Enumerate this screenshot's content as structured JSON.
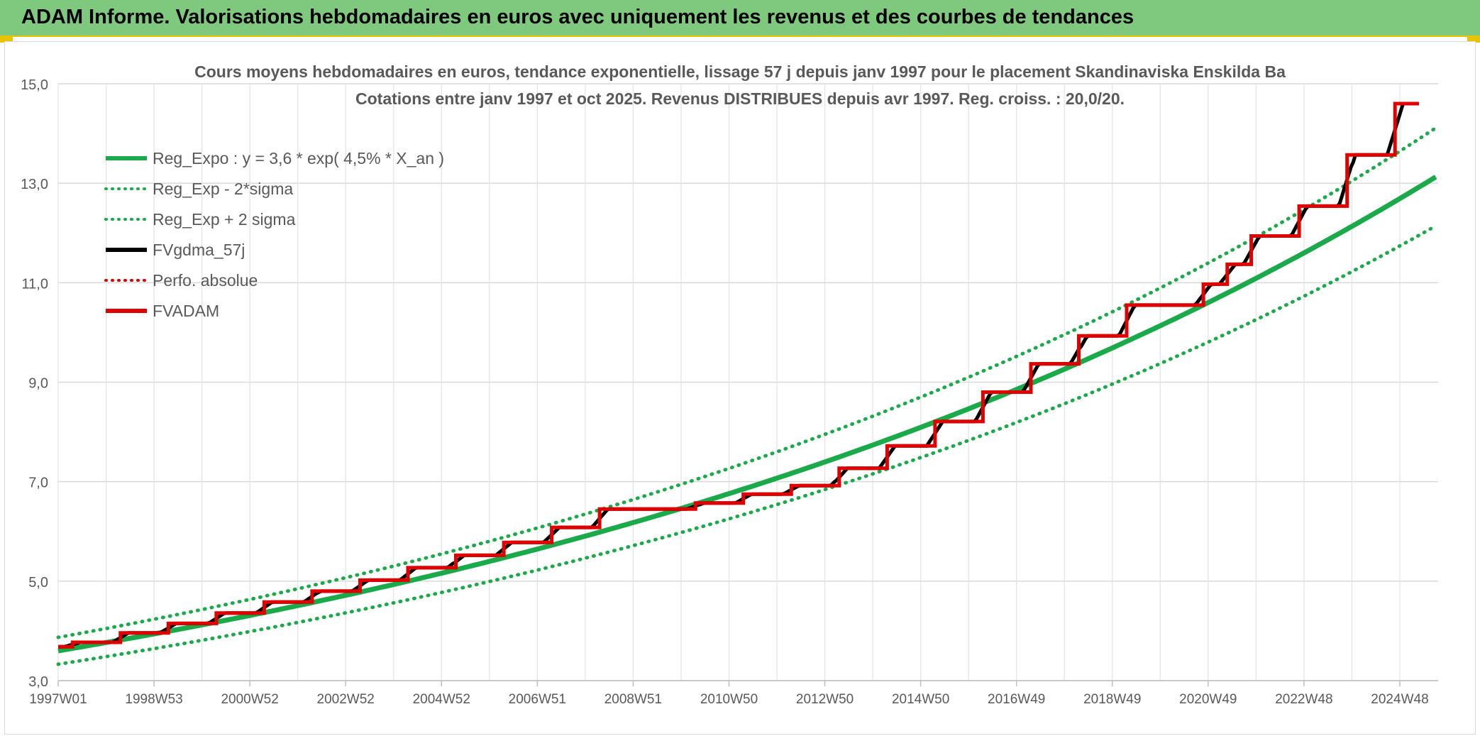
{
  "header": {
    "title": "ADAM Informe. Valorisations hebdomadaires en euros avec uniquement les revenus et des courbes de tendances"
  },
  "chart_data": {
    "type": "line",
    "title": "Cours moyens hebdomadaires en euros, tendance exponentielle, lissage 57 j depuis janv 1997 pour le placement Skandinaviska Enskilda Ba",
    "subtitle": "Cotations entre janv 1997 et oct 2025. Revenus DISTRIBUES depuis avr 1997. Reg. croiss. : 20,0/20.",
    "xlabel": "",
    "ylabel": "",
    "x_range": [
      1997.0,
      2025.8
    ],
    "ylim": [
      3.0,
      15.0
    ],
    "y_ticks": [
      "3,0",
      "5,0",
      "7,0",
      "9,0",
      "11,0",
      "13,0",
      "15,0"
    ],
    "x_ticks": [
      {
        "label": "1997W01",
        "x": 1997.0
      },
      {
        "label": "1998W53",
        "x": 1999.0
      },
      {
        "label": "2000W52",
        "x": 2001.0
      },
      {
        "label": "2002W52",
        "x": 2003.0
      },
      {
        "label": "2004W52",
        "x": 2005.0
      },
      {
        "label": "2006W51",
        "x": 2007.0
      },
      {
        "label": "2008W51",
        "x": 2009.0
      },
      {
        "label": "2010W50",
        "x": 2011.0
      },
      {
        "label": "2012W50",
        "x": 2013.0
      },
      {
        "label": "2014W50",
        "x": 2015.0
      },
      {
        "label": "2016W49",
        "x": 2017.0
      },
      {
        "label": "2018W49",
        "x": 2019.0
      },
      {
        "label": "2020W49",
        "x": 2021.0
      },
      {
        "label": "2022W48",
        "x": 2023.0
      },
      {
        "label": "2024W48",
        "x": 2025.0
      }
    ],
    "grid": true,
    "legend_position": "top-left",
    "series": [
      {
        "name": "Reg_Expo : y = 3,6 * exp( 4,5% *  X_an )",
        "kind": "exp",
        "a": 3.6,
        "rate": 0.045,
        "factor": 1.0,
        "color": "#1aaa4a",
        "style": "solid"
      },
      {
        "name": "Reg_Exp - 2*sigma",
        "kind": "exp",
        "a": 3.6,
        "rate": 0.045,
        "factor": 0.925,
        "color": "#1aaa4a",
        "style": "dotted"
      },
      {
        "name": "Reg_Exp + 2 sigma",
        "kind": "exp",
        "a": 3.6,
        "rate": 0.045,
        "factor": 1.075,
        "color": "#1aaa4a",
        "style": "dotted"
      },
      {
        "name": "FVgdma_57j",
        "kind": "smooth",
        "color": "#000000",
        "style": "solid"
      },
      {
        "name": "Perfo. absolue",
        "kind": "none",
        "color": "#e00000",
        "style": "dotted"
      },
      {
        "name": "FVADAM",
        "kind": "step",
        "color": "#e00000",
        "style": "solid",
        "steps": [
          {
            "x": 1997.0,
            "y": 3.68
          },
          {
            "x": 1997.3,
            "y": 3.77
          },
          {
            "x": 1998.3,
            "y": 3.96
          },
          {
            "x": 1999.3,
            "y": 4.15
          },
          {
            "x": 2000.3,
            "y": 4.36
          },
          {
            "x": 2001.3,
            "y": 4.58
          },
          {
            "x": 2002.3,
            "y": 4.8
          },
          {
            "x": 2003.3,
            "y": 5.02
          },
          {
            "x": 2004.3,
            "y": 5.27
          },
          {
            "x": 2005.3,
            "y": 5.52
          },
          {
            "x": 2006.3,
            "y": 5.78
          },
          {
            "x": 2007.3,
            "y": 6.08
          },
          {
            "x": 2008.3,
            "y": 6.45
          },
          {
            "x": 2010.3,
            "y": 6.57
          },
          {
            "x": 2011.3,
            "y": 6.75
          },
          {
            "x": 2012.3,
            "y": 6.92
          },
          {
            "x": 2013.3,
            "y": 7.27
          },
          {
            "x": 2014.3,
            "y": 7.72
          },
          {
            "x": 2015.3,
            "y": 8.21
          },
          {
            "x": 2016.3,
            "y": 8.8
          },
          {
            "x": 2017.3,
            "y": 9.37
          },
          {
            "x": 2018.3,
            "y": 9.93
          },
          {
            "x": 2019.3,
            "y": 10.55
          },
          {
            "x": 2020.9,
            "y": 10.97
          },
          {
            "x": 2021.4,
            "y": 11.37
          },
          {
            "x": 2021.9,
            "y": 11.94
          },
          {
            "x": 2022.9,
            "y": 12.54
          },
          {
            "x": 2023.9,
            "y": 13.57
          },
          {
            "x": 2024.9,
            "y": 14.6
          },
          {
            "x": 2025.4,
            "y": 14.6
          }
        ]
      }
    ]
  }
}
